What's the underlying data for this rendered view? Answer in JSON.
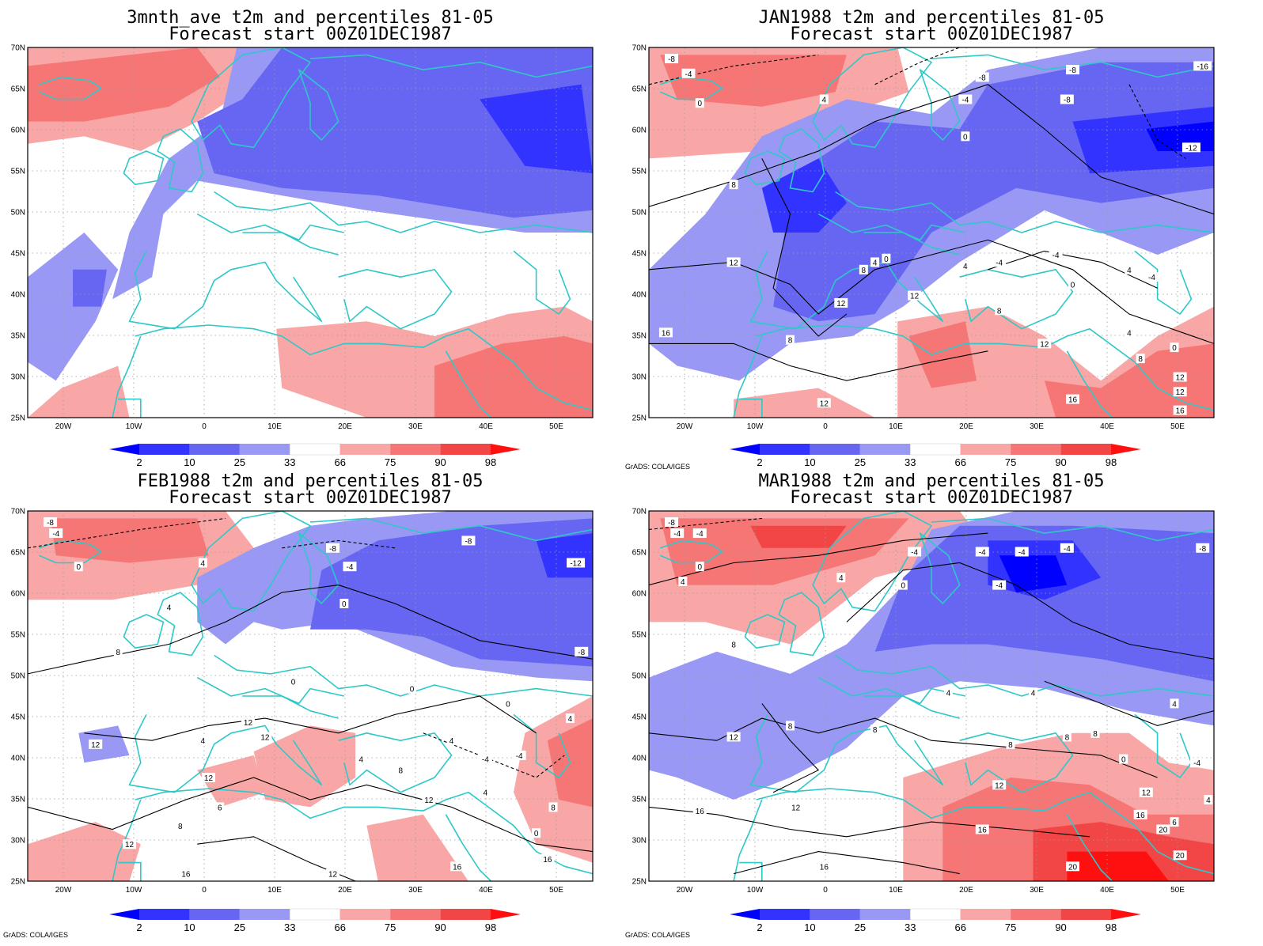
{
  "legend": {
    "labels": [
      "2",
      "10",
      "25",
      "33",
      "66",
      "75",
      "90",
      "98"
    ],
    "colors": [
      "#0000ff",
      "#3333ff",
      "#6666f3",
      "#9999f5",
      "#ffffff",
      "#f9a6a6",
      "#f67676",
      "#f24646",
      "#ff1010"
    ]
  },
  "credit": "GrADS: COLA/IGES",
  "axes": {
    "lon_labels": [
      "20W",
      "10W",
      "0",
      "10E",
      "20E",
      "30E",
      "40E",
      "50E"
    ],
    "lat_labels": [
      "70N",
      "65N",
      "60N",
      "55N",
      "50N",
      "45N",
      "40N",
      "35N",
      "30N",
      "25N"
    ]
  },
  "panels": [
    {
      "title_line1": "3mnth_ave t2m and percentiles 81-05",
      "title_line2": "Forecast start 00Z01DEC1987",
      "show_credit": false,
      "contour_labels": []
    },
    {
      "title_line1": "JAN1988 t2m and percentiles 81-05",
      "title_line2": "Forecast start 00Z01DEC1987",
      "show_credit": true,
      "contour_labels": [
        "-8",
        "-4",
        "0",
        "4",
        "-8",
        "-4",
        "0",
        "-8",
        "-8",
        "-16",
        "-12",
        "8",
        "12",
        "8",
        "12",
        "4",
        "0",
        "4",
        "-4",
        "-4",
        "0",
        "4",
        "16",
        "8",
        "8",
        "12",
        "12",
        "-4",
        "4",
        "0",
        "8",
        "12",
        "16",
        "12",
        "12",
        "16"
      ]
    },
    {
      "title_line1": "FEB1988 t2m and percentiles 81-05",
      "title_line2": "Forecast start 00Z01DEC1987",
      "show_credit": true,
      "contour_labels": [
        "-8",
        "-4",
        "0",
        "4",
        "4",
        "-8",
        "-4",
        "0",
        "-8",
        "-12",
        "-8",
        "8",
        "0",
        "0",
        "0",
        "4",
        "-4",
        "12",
        "4",
        "12",
        "12",
        "12",
        "6",
        "8",
        "4",
        "4",
        "-4",
        "4",
        "8",
        "12",
        "8",
        "0",
        "12",
        "16",
        "16",
        "12",
        "16"
      ]
    },
    {
      "title_line1": "MAR1988 t2m and percentiles 81-05",
      "title_line2": "Forecast start 00Z01DEC1987",
      "show_credit": true,
      "contour_labels": [
        "-8",
        "-4",
        "0",
        "4",
        "-4",
        "4",
        "-4",
        "-4",
        "-4",
        "-4",
        "0",
        "-4",
        "-8",
        "8",
        "4",
        "4",
        "12",
        "8",
        "8",
        "8",
        "8",
        "8",
        "0",
        "4",
        "12",
        "12",
        "16",
        "16",
        "12",
        "16",
        "20",
        "20",
        "20",
        "16",
        "6",
        "4",
        "-4"
      ]
    }
  ]
}
